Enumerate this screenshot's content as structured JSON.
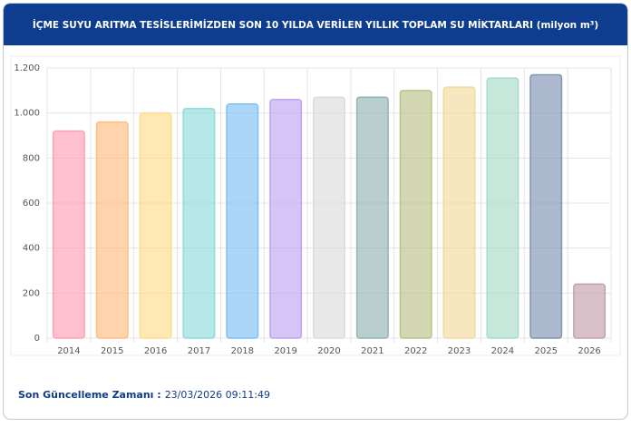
{
  "chart_data": {
    "type": "bar",
    "title": "İÇME SUYU ARITMA TESİSLERİMİZDEN SON 10 YILDA VERİLEN YILLIK TOPLAM SU MİKTARLARI (milyon m³)",
    "categories": [
      "2014",
      "2015",
      "2016",
      "2017",
      "2018",
      "2019",
      "2020",
      "2021",
      "2022",
      "2023",
      "2024",
      "2025",
      "2026"
    ],
    "values": [
      920,
      960,
      1000,
      1020,
      1040,
      1060,
      1070,
      1070,
      1100,
      1115,
      1155,
      1170,
      240
    ],
    "colors": [
      "#ff9fb6",
      "#ffbd80",
      "#ffdc8a",
      "#8fdcdc",
      "#7fc0f2",
      "#c0a4f2",
      "#dcdcdc",
      "#92b4b6",
      "#bcc288",
      "#f2da9e",
      "#a8dcc8",
      "#8094b4",
      "#c4a0ac"
    ],
    "ylim": [
      0,
      1200
    ],
    "yticks": [
      0,
      200,
      400,
      600,
      800,
      {
        "value": 1000,
        "label": "1.000"
      },
      {
        "value": 1200,
        "label": "1.200"
      }
    ],
    "grid": true
  },
  "footer": {
    "label": "Son Güncelleme Zamanı :",
    "value": "23/03/2026 09:11:49"
  }
}
